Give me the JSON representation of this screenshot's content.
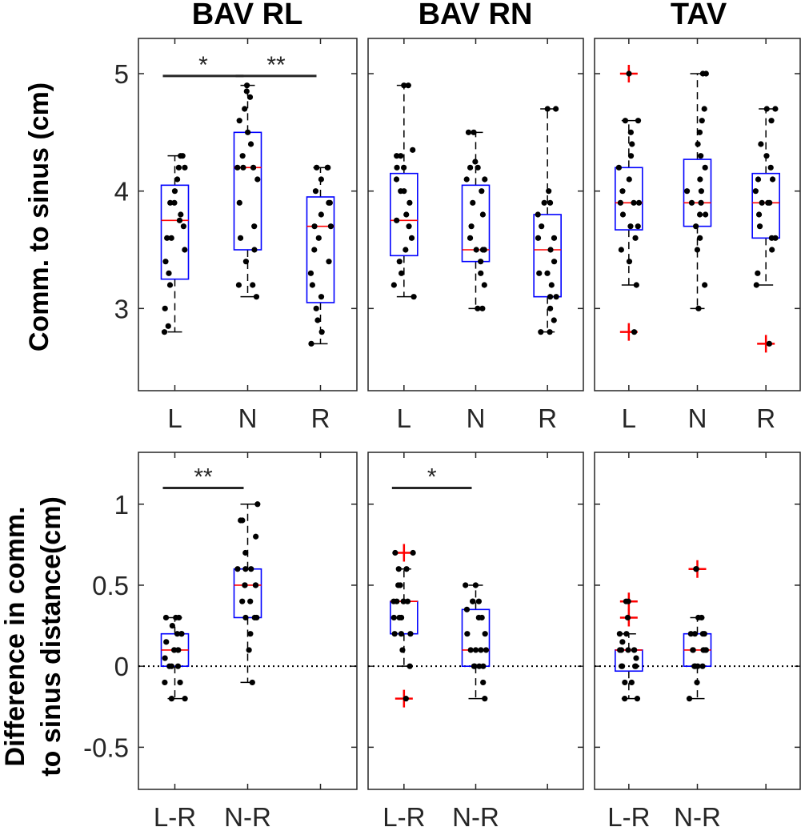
{
  "colors": {
    "box": "#0000ff",
    "median": "#ff0000",
    "outlier": "#ff0000",
    "point": "#000000",
    "whisker": "#000000",
    "axis": "#262626",
    "sig_bar": "#262626"
  },
  "ylabels": {
    "top": "Comm. to sinus (cm)",
    "bottom_line1": "Difference  in comm.",
    "bottom_line2": "to sinus distance(cm)"
  },
  "chart_data": [
    {
      "type": "box",
      "title": "BAV RL",
      "ylim": [
        2.3,
        5.3
      ],
      "yticks": [
        "3",
        "4",
        "5"
      ],
      "categories": [
        "L",
        "N",
        "R"
      ],
      "boxes": [
        {
          "category": "L",
          "q1": 3.25,
          "median": 3.75,
          "q3": 4.05,
          "whisker_low": 2.8,
          "whisker_high": 4.3,
          "outliers": [],
          "points": [
            2.8,
            2.85,
            3.0,
            3.2,
            3.3,
            3.4,
            3.5,
            3.6,
            3.6,
            3.7,
            3.75,
            3.8,
            3.9,
            3.9,
            4.0,
            4.1,
            4.2,
            4.2,
            4.3,
            4.3
          ]
        },
        {
          "category": "N",
          "q1": 3.5,
          "median": 4.2,
          "q3": 4.5,
          "whisker_low": 3.1,
          "whisker_high": 4.9,
          "outliers": [],
          "points": [
            3.1,
            3.2,
            3.2,
            3.4,
            3.5,
            3.6,
            3.7,
            3.9,
            4.1,
            4.2,
            4.2,
            4.2,
            4.3,
            4.4,
            4.5,
            4.6,
            4.7,
            4.8,
            4.85,
            4.9
          ]
        },
        {
          "category": "R",
          "q1": 3.05,
          "median": 3.7,
          "q3": 3.95,
          "whisker_low": 2.7,
          "whisker_high": 4.2,
          "outliers": [],
          "points": [
            2.7,
            2.8,
            2.9,
            3.0,
            3.1,
            3.2,
            3.3,
            3.4,
            3.5,
            3.6,
            3.7,
            3.7,
            3.8,
            3.9,
            3.9,
            4.0,
            4.1,
            4.2,
            4.2,
            4.2
          ]
        }
      ],
      "significance": [
        {
          "from": 0,
          "to": 1,
          "label": "*",
          "y": 4.98
        },
        {
          "from": 1,
          "to": 2,
          "label": "**",
          "y": 4.98
        }
      ]
    },
    {
      "type": "box",
      "title": "BAV RN",
      "ylim": [
        2.3,
        5.3
      ],
      "categories": [
        "L",
        "N",
        "R"
      ],
      "boxes": [
        {
          "category": "L",
          "q1": 3.45,
          "median": 3.75,
          "q3": 4.15,
          "whisker_low": 3.1,
          "whisker_high": 4.9,
          "outliers": [],
          "points": [
            3.1,
            3.2,
            3.3,
            3.4,
            3.5,
            3.6,
            3.7,
            3.75,
            3.8,
            3.9,
            4.0,
            4.0,
            4.1,
            4.2,
            4.2,
            4.3,
            4.3,
            4.35,
            4.9,
            4.9
          ]
        },
        {
          "category": "N",
          "q1": 3.4,
          "median": 3.5,
          "q3": 4.05,
          "whisker_low": 3.0,
          "whisker_high": 4.5,
          "outliers": [],
          "points": [
            3.0,
            3.0,
            3.2,
            3.3,
            3.4,
            3.5,
            3.5,
            3.5,
            3.6,
            3.7,
            3.8,
            3.9,
            4.0,
            4.1,
            4.1,
            4.2,
            4.2,
            4.25,
            4.5,
            4.5
          ]
        },
        {
          "category": "R",
          "q1": 3.1,
          "median": 3.5,
          "q3": 3.8,
          "whisker_low": 2.8,
          "whisker_high": 4.7,
          "outliers": [],
          "points": [
            2.8,
            2.8,
            2.9,
            3.0,
            3.1,
            3.1,
            3.2,
            3.3,
            3.3,
            3.4,
            3.5,
            3.6,
            3.6,
            3.7,
            3.8,
            3.9,
            3.9,
            4.0,
            4.7,
            4.7
          ]
        }
      ],
      "significance": []
    },
    {
      "type": "box",
      "title": "TAV",
      "ylim": [
        2.3,
        5.3
      ],
      "categories": [
        "L",
        "N",
        "R"
      ],
      "boxes": [
        {
          "category": "L",
          "q1": 3.67,
          "median": 3.9,
          "q3": 4.2,
          "whisker_low": 3.2,
          "whisker_high": 4.6,
          "outliers": [
            5.0,
            2.8
          ],
          "points": [
            2.8,
            3.2,
            3.4,
            3.5,
            3.6,
            3.7,
            3.7,
            3.8,
            3.9,
            3.9,
            3.9,
            4.0,
            4.1,
            4.2,
            4.3,
            4.4,
            4.5,
            4.6,
            4.6,
            5.0
          ]
        },
        {
          "category": "N",
          "q1": 3.7,
          "median": 3.9,
          "q3": 4.27,
          "whisker_low": 3.0,
          "whisker_high": 5.0,
          "outliers": [],
          "points": [
            3.0,
            3.2,
            3.5,
            3.6,
            3.7,
            3.8,
            3.8,
            3.9,
            3.9,
            4.0,
            4.0,
            4.1,
            4.2,
            4.3,
            4.4,
            4.5,
            4.6,
            4.7,
            5.0,
            5.0
          ]
        },
        {
          "category": "R",
          "q1": 3.6,
          "median": 3.9,
          "q3": 4.15,
          "whisker_low": 3.2,
          "whisker_high": 4.7,
          "outliers": [
            2.7
          ],
          "points": [
            2.7,
            3.2,
            3.3,
            3.5,
            3.6,
            3.6,
            3.7,
            3.8,
            3.9,
            3.9,
            3.9,
            4.0,
            4.1,
            4.1,
            4.2,
            4.3,
            4.4,
            4.6,
            4.7,
            4.7
          ]
        }
      ],
      "significance": []
    },
    {
      "type": "box",
      "ylim": [
        -0.76,
        1.32
      ],
      "yticks": [
        "-0.5",
        "0",
        "0.5",
        "1"
      ],
      "zero_line": true,
      "categories": [
        "L-R",
        "N-R"
      ],
      "boxes": [
        {
          "category": "L-R",
          "q1": 0.0,
          "median": 0.1,
          "q3": 0.2,
          "whisker_low": -0.2,
          "whisker_high": 0.3,
          "outliers": [],
          "points": [
            -0.2,
            -0.2,
            -0.1,
            -0.1,
            0.0,
            0.0,
            0.0,
            0.05,
            0.1,
            0.1,
            0.1,
            0.1,
            0.15,
            0.2,
            0.2,
            0.2,
            0.25,
            0.3,
            0.3,
            0.3
          ]
        },
        {
          "category": "N-R",
          "q1": 0.3,
          "median": 0.5,
          "q3": 0.6,
          "whisker_low": -0.1,
          "whisker_high": 1.0,
          "outliers": [],
          "points": [
            -0.1,
            0.1,
            0.2,
            0.3,
            0.3,
            0.3,
            0.4,
            0.4,
            0.5,
            0.5,
            0.5,
            0.5,
            0.6,
            0.6,
            0.6,
            0.7,
            0.8,
            0.9,
            0.9,
            1.0
          ]
        }
      ],
      "significance": [
        {
          "from": 0,
          "to": 1,
          "label": "**",
          "y": 1.1
        }
      ]
    },
    {
      "type": "box",
      "ylim": [
        -0.76,
        1.32
      ],
      "zero_line": true,
      "categories": [
        "L-R",
        "N-R"
      ],
      "boxes": [
        {
          "category": "L-R",
          "q1": 0.2,
          "median": 0.4,
          "q3": 0.4,
          "whisker_low": 0.0,
          "whisker_high": 0.6,
          "outliers": [
            0.7,
            -0.2
          ],
          "points": [
            -0.2,
            0.0,
            0.1,
            0.2,
            0.2,
            0.2,
            0.3,
            0.3,
            0.3,
            0.4,
            0.4,
            0.4,
            0.4,
            0.4,
            0.5,
            0.5,
            0.6,
            0.6,
            0.7,
            0.7
          ]
        },
        {
          "category": "N-R",
          "q1": 0.0,
          "median": 0.1,
          "q3": 0.35,
          "whisker_low": -0.2,
          "whisker_high": 0.5,
          "outliers": [],
          "points": [
            -0.2,
            -0.1,
            0.0,
            0.0,
            0.0,
            0.0,
            0.1,
            0.1,
            0.1,
            0.1,
            0.2,
            0.2,
            0.3,
            0.3,
            0.35,
            0.4,
            0.4,
            0.4,
            0.5,
            0.5
          ]
        }
      ],
      "significance": [
        {
          "from": 0,
          "to": 1,
          "label": "*",
          "y": 1.1
        }
      ]
    },
    {
      "type": "box",
      "ylim": [
        -0.76,
        1.32
      ],
      "zero_line": true,
      "categories": [
        "L-R",
        "N-R"
      ],
      "boxes": [
        {
          "category": "L-R",
          "q1": -0.03,
          "median": 0.1,
          "q3": 0.1,
          "whisker_low": -0.2,
          "whisker_high": 0.2,
          "outliers": [
            0.4,
            0.3
          ],
          "points": [
            -0.2,
            -0.2,
            -0.1,
            -0.1,
            0.0,
            0.0,
            0.0,
            0.0,
            0.05,
            0.1,
            0.1,
            0.1,
            0.1,
            0.1,
            0.15,
            0.2,
            0.2,
            0.3,
            0.4,
            0.4
          ]
        },
        {
          "category": "N-R",
          "q1": 0.0,
          "median": 0.1,
          "q3": 0.2,
          "whisker_low": -0.2,
          "whisker_high": 0.3,
          "outliers": [
            0.6
          ],
          "points": [
            -0.2,
            -0.1,
            0.0,
            0.0,
            0.0,
            0.0,
            0.1,
            0.1,
            0.1,
            0.1,
            0.1,
            0.1,
            0.2,
            0.2,
            0.2,
            0.2,
            0.3,
            0.3,
            0.6,
            0.6
          ]
        }
      ],
      "significance": []
    }
  ]
}
